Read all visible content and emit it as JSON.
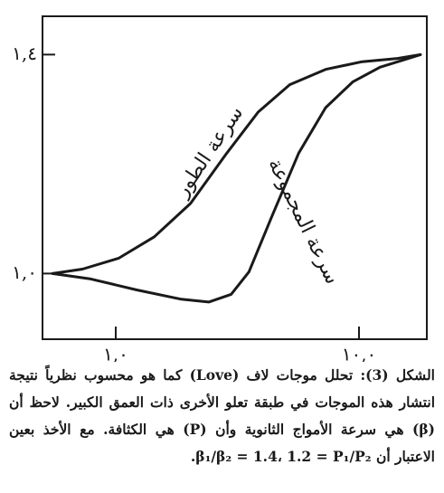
{
  "chart_data": {
    "type": "line",
    "caption": "الشكل (3): تحلل موجات لاف (Love) كما هو محسوب نظرياً نتيجة انتشار هذه الموجات في طبقة تعلو الأخرى ذات العمق الكبير. لاحظ أن (β) هي سرعة الأمواج الثانوية وأن (P) هي الكثافة. مع الأخذ بعين الاعتبار أن β₁/β₂ = 1.4، 1.2 = P₁/P₂.",
    "xlog": true,
    "xlim": [
      0.5,
      19
    ],
    "ylim": [
      0.88,
      1.47
    ],
    "xticks": [
      {
        "value": 1,
        "label": "١,٠"
      },
      {
        "value": 10,
        "label": "١٠,٠"
      }
    ],
    "yticks": [
      {
        "value": 1.0,
        "label": "١,٠"
      },
      {
        "value": 1.4,
        "label": "١,٤"
      }
    ],
    "series": [
      {
        "name": "سرعة الطور",
        "color": "#1a1a1a",
        "x": [
          0.55,
          0.73,
          1.03,
          1.44,
          2.03,
          2.86,
          3.85,
          5.19,
          7.29,
          10.3,
          14.4,
          17.9
        ],
        "values": [
          1.0,
          1.008,
          1.028,
          1.067,
          1.128,
          1.22,
          1.295,
          1.345,
          1.373,
          1.387,
          1.393,
          1.4
        ]
      },
      {
        "name": "سرعة المجموعة",
        "color": "#1a1a1a",
        "x": [
          0.55,
          0.79,
          1.22,
          1.86,
          2.41,
          2.98,
          3.53,
          4.37,
          5.65,
          7.29,
          9.42,
          12.2,
          15.7,
          17.9
        ],
        "values": [
          1.0,
          0.99,
          0.97,
          0.953,
          0.948,
          0.962,
          1.003,
          1.103,
          1.22,
          1.303,
          1.35,
          1.377,
          1.392,
          1.4
        ]
      }
    ]
  }
}
